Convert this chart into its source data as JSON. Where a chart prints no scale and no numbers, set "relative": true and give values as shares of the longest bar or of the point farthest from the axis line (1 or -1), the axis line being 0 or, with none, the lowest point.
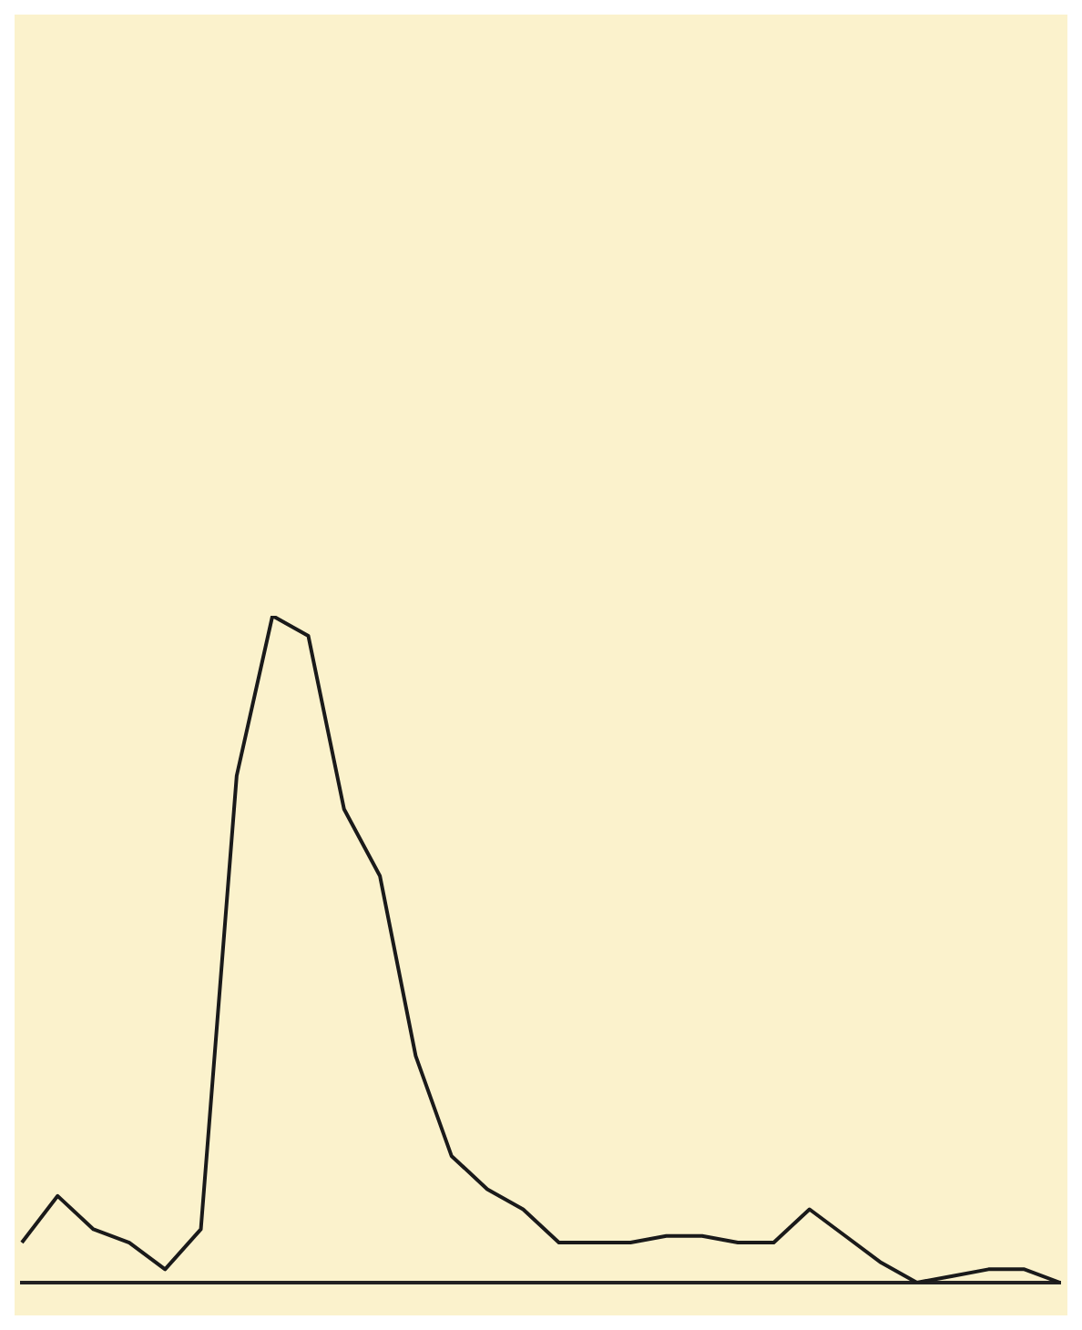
{
  "chart_data": {
    "type": "line",
    "relative": true,
    "categories": [
      null,
      null,
      null,
      null,
      null,
      null,
      null,
      null,
      null,
      null,
      null,
      null,
      null,
      null,
      null,
      null,
      null,
      null,
      null,
      null,
      null,
      null,
      null,
      null,
      null,
      null,
      null,
      null,
      null,
      null
    ],
    "series": [
      {
        "color": "#1a1a1a",
        "values": [
          0.06,
          0.13,
          0.08,
          0.06,
          0.02,
          0.08,
          0.76,
          1,
          0.97,
          0.71,
          0.61,
          0.34,
          0.19,
          0.14,
          0.11,
          0.06,
          0.06,
          0.06,
          0.07,
          0.07,
          0.06,
          0.06,
          0.11,
          0.07,
          0.03,
          0,
          0.01,
          0.02,
          0.02,
          0
        ]
      }
    ],
    "marker": "none",
    "line_style": "solid"
  }
}
